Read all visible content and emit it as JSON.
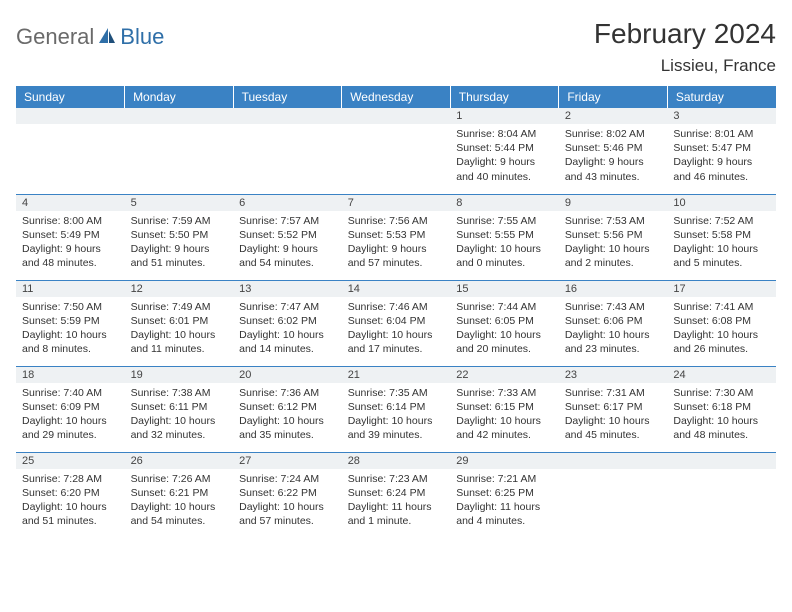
{
  "logo": {
    "general": "General",
    "blue": "Blue"
  },
  "header": {
    "title": "February 2024",
    "location": "Lissieu, France"
  },
  "colors": {
    "header_bg": "#3a82c4",
    "header_text": "#ffffff",
    "daynum_bg": "#eef1f3",
    "cell_border": "#3a82c4",
    "logo_gray": "#6a6a6a",
    "logo_blue": "#2f6fa8",
    "text": "#333333",
    "page_bg": "#ffffff"
  },
  "day_headers": [
    "Sunday",
    "Monday",
    "Tuesday",
    "Wednesday",
    "Thursday",
    "Friday",
    "Saturday"
  ],
  "weeks": [
    [
      {
        "n": "",
        "sr": "",
        "ss": "",
        "dl": ""
      },
      {
        "n": "",
        "sr": "",
        "ss": "",
        "dl": ""
      },
      {
        "n": "",
        "sr": "",
        "ss": "",
        "dl": ""
      },
      {
        "n": "",
        "sr": "",
        "ss": "",
        "dl": ""
      },
      {
        "n": "1",
        "sr": "Sunrise: 8:04 AM",
        "ss": "Sunset: 5:44 PM",
        "dl": "Daylight: 9 hours and 40 minutes."
      },
      {
        "n": "2",
        "sr": "Sunrise: 8:02 AM",
        "ss": "Sunset: 5:46 PM",
        "dl": "Daylight: 9 hours and 43 minutes."
      },
      {
        "n": "3",
        "sr": "Sunrise: 8:01 AM",
        "ss": "Sunset: 5:47 PM",
        "dl": "Daylight: 9 hours and 46 minutes."
      }
    ],
    [
      {
        "n": "4",
        "sr": "Sunrise: 8:00 AM",
        "ss": "Sunset: 5:49 PM",
        "dl": "Daylight: 9 hours and 48 minutes."
      },
      {
        "n": "5",
        "sr": "Sunrise: 7:59 AM",
        "ss": "Sunset: 5:50 PM",
        "dl": "Daylight: 9 hours and 51 minutes."
      },
      {
        "n": "6",
        "sr": "Sunrise: 7:57 AM",
        "ss": "Sunset: 5:52 PM",
        "dl": "Daylight: 9 hours and 54 minutes."
      },
      {
        "n": "7",
        "sr": "Sunrise: 7:56 AM",
        "ss": "Sunset: 5:53 PM",
        "dl": "Daylight: 9 hours and 57 minutes."
      },
      {
        "n": "8",
        "sr": "Sunrise: 7:55 AM",
        "ss": "Sunset: 5:55 PM",
        "dl": "Daylight: 10 hours and 0 minutes."
      },
      {
        "n": "9",
        "sr": "Sunrise: 7:53 AM",
        "ss": "Sunset: 5:56 PM",
        "dl": "Daylight: 10 hours and 2 minutes."
      },
      {
        "n": "10",
        "sr": "Sunrise: 7:52 AM",
        "ss": "Sunset: 5:58 PM",
        "dl": "Daylight: 10 hours and 5 minutes."
      }
    ],
    [
      {
        "n": "11",
        "sr": "Sunrise: 7:50 AM",
        "ss": "Sunset: 5:59 PM",
        "dl": "Daylight: 10 hours and 8 minutes."
      },
      {
        "n": "12",
        "sr": "Sunrise: 7:49 AM",
        "ss": "Sunset: 6:01 PM",
        "dl": "Daylight: 10 hours and 11 minutes."
      },
      {
        "n": "13",
        "sr": "Sunrise: 7:47 AM",
        "ss": "Sunset: 6:02 PM",
        "dl": "Daylight: 10 hours and 14 minutes."
      },
      {
        "n": "14",
        "sr": "Sunrise: 7:46 AM",
        "ss": "Sunset: 6:04 PM",
        "dl": "Daylight: 10 hours and 17 minutes."
      },
      {
        "n": "15",
        "sr": "Sunrise: 7:44 AM",
        "ss": "Sunset: 6:05 PM",
        "dl": "Daylight: 10 hours and 20 minutes."
      },
      {
        "n": "16",
        "sr": "Sunrise: 7:43 AM",
        "ss": "Sunset: 6:06 PM",
        "dl": "Daylight: 10 hours and 23 minutes."
      },
      {
        "n": "17",
        "sr": "Sunrise: 7:41 AM",
        "ss": "Sunset: 6:08 PM",
        "dl": "Daylight: 10 hours and 26 minutes."
      }
    ],
    [
      {
        "n": "18",
        "sr": "Sunrise: 7:40 AM",
        "ss": "Sunset: 6:09 PM",
        "dl": "Daylight: 10 hours and 29 minutes."
      },
      {
        "n": "19",
        "sr": "Sunrise: 7:38 AM",
        "ss": "Sunset: 6:11 PM",
        "dl": "Daylight: 10 hours and 32 minutes."
      },
      {
        "n": "20",
        "sr": "Sunrise: 7:36 AM",
        "ss": "Sunset: 6:12 PM",
        "dl": "Daylight: 10 hours and 35 minutes."
      },
      {
        "n": "21",
        "sr": "Sunrise: 7:35 AM",
        "ss": "Sunset: 6:14 PM",
        "dl": "Daylight: 10 hours and 39 minutes."
      },
      {
        "n": "22",
        "sr": "Sunrise: 7:33 AM",
        "ss": "Sunset: 6:15 PM",
        "dl": "Daylight: 10 hours and 42 minutes."
      },
      {
        "n": "23",
        "sr": "Sunrise: 7:31 AM",
        "ss": "Sunset: 6:17 PM",
        "dl": "Daylight: 10 hours and 45 minutes."
      },
      {
        "n": "24",
        "sr": "Sunrise: 7:30 AM",
        "ss": "Sunset: 6:18 PM",
        "dl": "Daylight: 10 hours and 48 minutes."
      }
    ],
    [
      {
        "n": "25",
        "sr": "Sunrise: 7:28 AM",
        "ss": "Sunset: 6:20 PM",
        "dl": "Daylight: 10 hours and 51 minutes."
      },
      {
        "n": "26",
        "sr": "Sunrise: 7:26 AM",
        "ss": "Sunset: 6:21 PM",
        "dl": "Daylight: 10 hours and 54 minutes."
      },
      {
        "n": "27",
        "sr": "Sunrise: 7:24 AM",
        "ss": "Sunset: 6:22 PM",
        "dl": "Daylight: 10 hours and 57 minutes."
      },
      {
        "n": "28",
        "sr": "Sunrise: 7:23 AM",
        "ss": "Sunset: 6:24 PM",
        "dl": "Daylight: 11 hours and 1 minute."
      },
      {
        "n": "29",
        "sr": "Sunrise: 7:21 AM",
        "ss": "Sunset: 6:25 PM",
        "dl": "Daylight: 11 hours and 4 minutes."
      },
      {
        "n": "",
        "sr": "",
        "ss": "",
        "dl": ""
      },
      {
        "n": "",
        "sr": "",
        "ss": "",
        "dl": ""
      }
    ]
  ]
}
